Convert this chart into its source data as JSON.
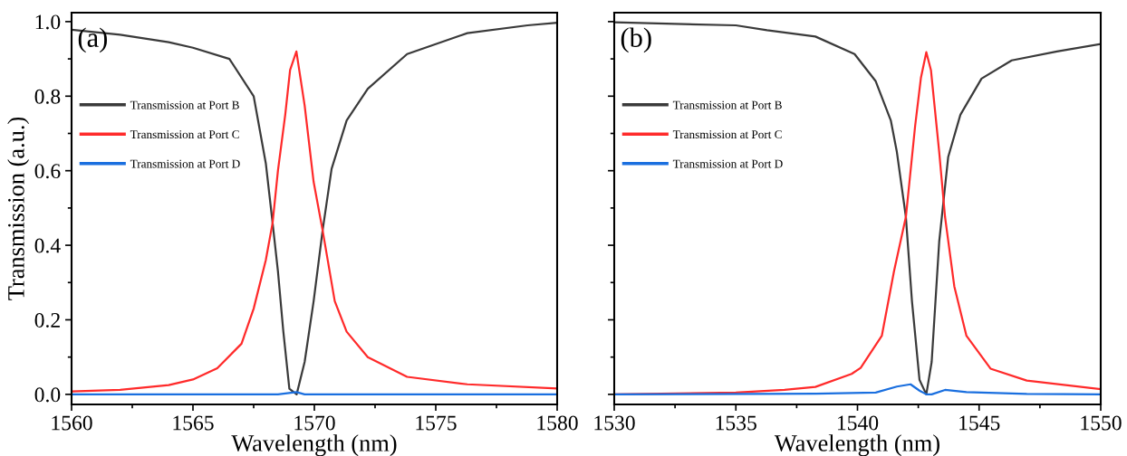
{
  "chart_data": [
    {
      "type": "line",
      "xlabel": "Wavelength (nm)",
      "ylabel": "Transmission (a.u.)",
      "annotations": [
        "(a)"
      ],
      "xlim": [
        1560,
        1580
      ],
      "xticks": [
        1560,
        1565,
        1570,
        1575,
        1580
      ],
      "ylim": [
        -0.027,
        1.024
      ],
      "yticks": [
        {
          "value": 0,
          "label": "0.0"
        },
        0.2,
        0.4,
        0.6,
        0.8,
        {
          "value": 1,
          "label": "1.0"
        }
      ],
      "legend": "top left",
      "grid": false,
      "line_style": "solid",
      "series": [
        {
          "name": "Transmission at Port B",
          "color": "#3a3a3a",
          "x": [
            1560,
            1562,
            1564,
            1565,
            1566.5,
            1567.5,
            1568,
            1568.28,
            1568.5,
            1568.72,
            1568.97,
            1569.27,
            1569.6,
            1569.97,
            1570.34,
            1570.71,
            1571.33,
            1572.2,
            1573.82,
            1576.3,
            1578.78,
            1580
          ],
          "values": [
            0.978,
            0.965,
            0.945,
            0.93,
            0.9,
            0.8,
            0.62,
            0.46,
            0.33,
            0.17,
            0.015,
            0.0,
            0.087,
            0.25,
            0.44,
            0.605,
            0.735,
            0.82,
            0.913,
            0.969,
            0.99,
            0.997
          ]
        },
        {
          "name": "Transmission at Port C",
          "color": "#ff2a2a",
          "x": [
            1560,
            1562,
            1564,
            1565,
            1566,
            1567,
            1567.5,
            1568,
            1568.28,
            1568.5,
            1568.8,
            1569.0,
            1569.26,
            1569.6,
            1569.97,
            1570.34,
            1570.84,
            1571.33,
            1572.2,
            1573.82,
            1576.3,
            1580
          ],
          "values": [
            0.008,
            0.012,
            0.025,
            0.04,
            0.07,
            0.136,
            0.23,
            0.36,
            0.46,
            0.6,
            0.75,
            0.87,
            0.92,
            0.775,
            0.57,
            0.44,
            0.25,
            0.168,
            0.1,
            0.047,
            0.027,
            0.016
          ]
        },
        {
          "name": "Transmission at Port D",
          "color": "#1a6fdf",
          "x": [
            1560,
            1565,
            1568.5,
            1569.26,
            1569.6,
            1575,
            1580
          ],
          "values": [
            0.0,
            0.0,
            0.0,
            0.006,
            0.0,
            0.0,
            0.0
          ]
        }
      ]
    },
    {
      "type": "line",
      "xlabel": "Wavelength (nm)",
      "annotations": [
        "(b)"
      ],
      "xlim": [
        1530,
        1550
      ],
      "xticks": [
        1530,
        1535,
        1540,
        1545,
        1550
      ],
      "ylim": [
        -0.027,
        1.024
      ],
      "yticks": [
        {
          "value": 0,
          "label": null
        },
        {
          "value": 0.2,
          "label": null
        },
        {
          "value": 0.4,
          "label": null
        },
        {
          "value": 0.6,
          "label": null
        },
        {
          "value": 0.8,
          "label": null
        },
        {
          "value": 1,
          "label": null
        }
      ],
      "tick_labels": "x",
      "legend": "top left",
      "grid": false,
      "line_style": "solid",
      "series": [
        {
          "name": "Transmission at Port B",
          "color": "#3a3a3a",
          "x": [
            1530,
            1535,
            1536.28,
            1538.27,
            1539.88,
            1540.75,
            1541.37,
            1541.62,
            1541.99,
            1542.24,
            1542.55,
            1542.83,
            1543.05,
            1543.36,
            1543.73,
            1544.23,
            1545.1,
            1546.34,
            1548.2,
            1550
          ],
          "values": [
            0.998,
            0.99,
            0.977,
            0.96,
            0.913,
            0.84,
            0.735,
            0.65,
            0.476,
            0.25,
            0.039,
            0.0,
            0.087,
            0.41,
            0.637,
            0.75,
            0.847,
            0.896,
            0.92,
            0.94
          ]
        },
        {
          "name": "Transmission at Port C",
          "color": "#ff2a2a",
          "x": [
            1530,
            1535,
            1537,
            1538.27,
            1539.76,
            1540.13,
            1541.0,
            1541.5,
            1541.99,
            1542.37,
            1542.61,
            1542.83,
            1543.02,
            1543.36,
            1543.6,
            1543.98,
            1544.48,
            1545.47,
            1546.96,
            1550
          ],
          "values": [
            0.0,
            0.005,
            0.012,
            0.02,
            0.055,
            0.071,
            0.157,
            0.33,
            0.476,
            0.72,
            0.85,
            0.918,
            0.87,
            0.65,
            0.476,
            0.29,
            0.157,
            0.069,
            0.037,
            0.014
          ]
        },
        {
          "name": "Transmission at Port D",
          "color": "#1a6fdf",
          "x": [
            1530,
            1538.3,
            1540.75,
            1541.62,
            1542.18,
            1542.55,
            1542.83,
            1543.05,
            1543.6,
            1544.48,
            1546.96,
            1550
          ],
          "values": [
            0.0,
            0.002,
            0.005,
            0.021,
            0.027,
            0.01,
            0.0,
            0.0,
            0.012,
            0.006,
            0.001,
            0.0
          ]
        }
      ]
    }
  ]
}
